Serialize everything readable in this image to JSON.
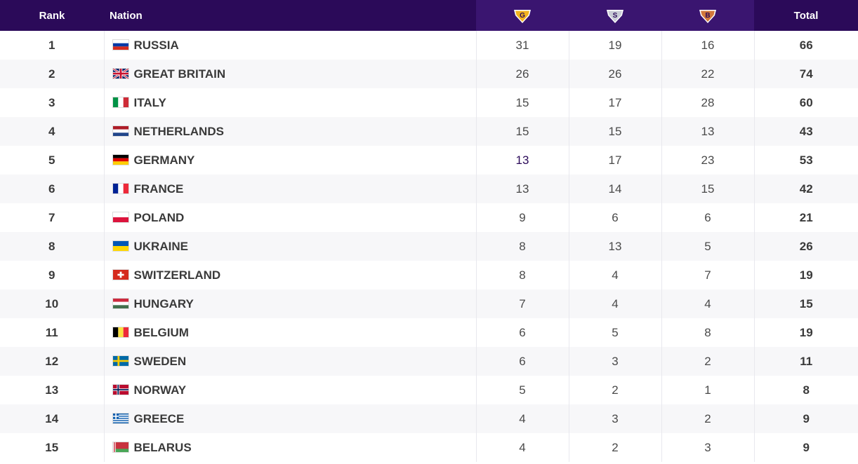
{
  "header": {
    "rank": "Rank",
    "nation": "Nation",
    "gold_letter": "G",
    "silver_letter": "S",
    "bronze_letter": "B",
    "total": "Total"
  },
  "colors": {
    "header_bg": "#2b0a59",
    "gold": "#f2b31f",
    "silver": "#c9ccd6",
    "bronze": "#d1773b"
  },
  "rows": [
    {
      "rank": "1",
      "nation": "RUSSIA",
      "flag": "ru",
      "gold": "31",
      "silver": "19",
      "bronze": "16",
      "total": "66"
    },
    {
      "rank": "2",
      "nation": "GREAT BRITAIN",
      "flag": "gb",
      "gold": "26",
      "silver": "26",
      "bronze": "22",
      "total": "74"
    },
    {
      "rank": "3",
      "nation": "ITALY",
      "flag": "it",
      "gold": "15",
      "silver": "17",
      "bronze": "28",
      "total": "60"
    },
    {
      "rank": "4",
      "nation": "NETHERLANDS",
      "flag": "nl",
      "gold": "15",
      "silver": "15",
      "bronze": "13",
      "total": "43"
    },
    {
      "rank": "5",
      "nation": "GERMANY",
      "flag": "de",
      "gold": "13",
      "silver": "17",
      "bronze": "23",
      "total": "53"
    },
    {
      "rank": "6",
      "nation": "FRANCE",
      "flag": "fr",
      "gold": "13",
      "silver": "14",
      "bronze": "15",
      "total": "42"
    },
    {
      "rank": "7",
      "nation": "POLAND",
      "flag": "pl",
      "gold": "9",
      "silver": "6",
      "bronze": "6",
      "total": "21"
    },
    {
      "rank": "8",
      "nation": "UKRAINE",
      "flag": "ua",
      "gold": "8",
      "silver": "13",
      "bronze": "5",
      "total": "26"
    },
    {
      "rank": "9",
      "nation": "SWITZERLAND",
      "flag": "ch",
      "gold": "8",
      "silver": "4",
      "bronze": "7",
      "total": "19"
    },
    {
      "rank": "10",
      "nation": "HUNGARY",
      "flag": "hu",
      "gold": "7",
      "silver": "4",
      "bronze": "4",
      "total": "15"
    },
    {
      "rank": "11",
      "nation": "BELGIUM",
      "flag": "be",
      "gold": "6",
      "silver": "5",
      "bronze": "8",
      "total": "19"
    },
    {
      "rank": "12",
      "nation": "SWEDEN",
      "flag": "se",
      "gold": "6",
      "silver": "3",
      "bronze": "2",
      "total": "11"
    },
    {
      "rank": "13",
      "nation": "NORWAY",
      "flag": "no",
      "gold": "5",
      "silver": "2",
      "bronze": "1",
      "total": "8"
    },
    {
      "rank": "14",
      "nation": "GREECE",
      "flag": "gr",
      "gold": "4",
      "silver": "3",
      "bronze": "2",
      "total": "9"
    },
    {
      "rank": "15",
      "nation": "BELARUS",
      "flag": "by",
      "gold": "4",
      "silver": "2",
      "bronze": "3",
      "total": "9"
    }
  ]
}
